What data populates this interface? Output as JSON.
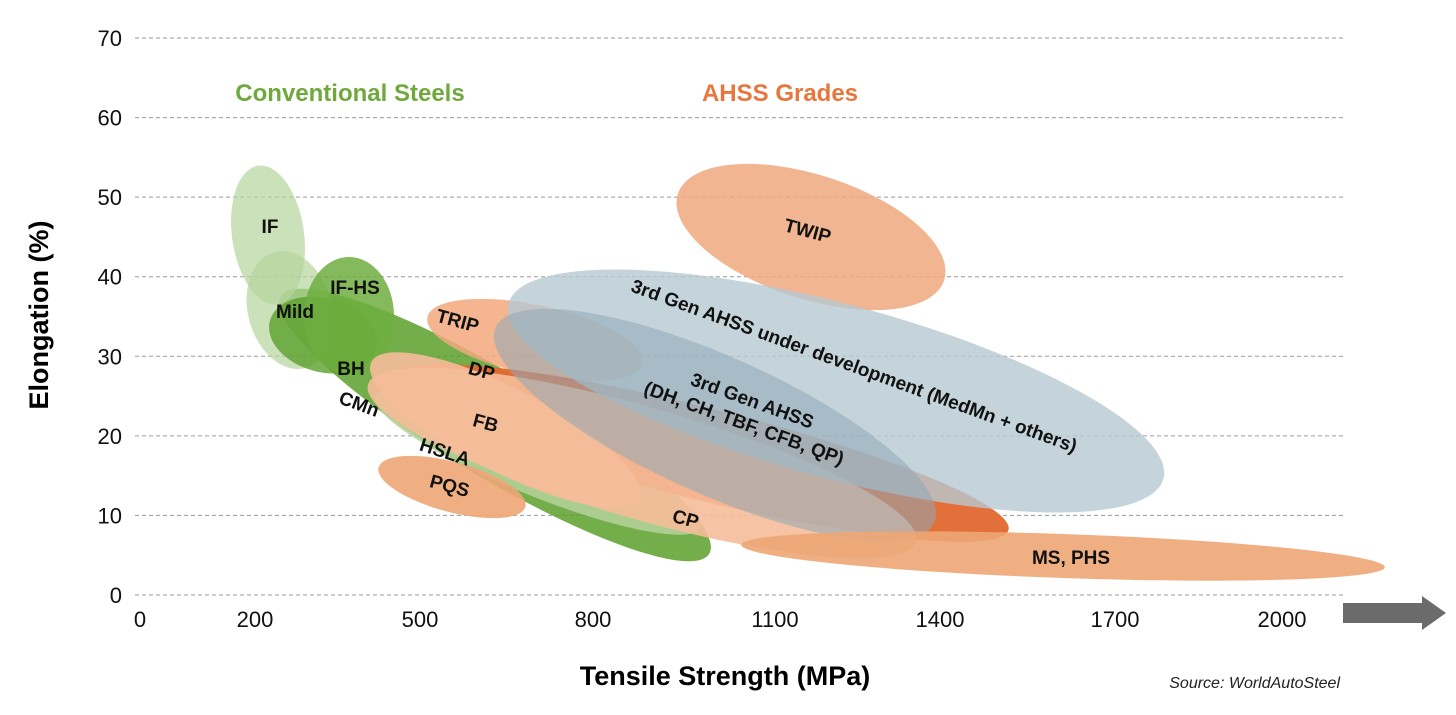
{
  "chart_data": {
    "type": "scatter",
    "xlabel": "Tensile Strength (MPa)",
    "ylabel": "Elongation (%)",
    "x_ticks": [
      "0",
      "200",
      "500",
      "800",
      "1100",
      "1400",
      "1700",
      "2000"
    ],
    "y_ticks": [
      "0",
      "10",
      "20",
      "30",
      "40",
      "50",
      "60",
      "70"
    ],
    "ylim": [
      0,
      70
    ],
    "grid": "horizontal dashed",
    "axis_arrow": "gray right arrow past x-axis",
    "groups": [
      {
        "label": "Conventional Steels",
        "color": "#6fa93e"
      },
      {
        "label": "AHSS Grades",
        "color": "#e8763d"
      }
    ],
    "regions": [
      {
        "label": "CMn",
        "group": "Conventional Steels",
        "color": "#5aa02c",
        "ts_range": [
          280,
          800
        ],
        "el_range": [
          11,
          34
        ]
      },
      {
        "label": "IF",
        "group": "Conventional Steels",
        "color": "#b5d49c",
        "ts_range": [
          180,
          300
        ],
        "el_range": [
          33,
          54
        ]
      },
      {
        "label": "Mild",
        "group": "Conventional Steels",
        "color": "#b5d49c",
        "ts_range": [
          200,
          330
        ],
        "el_range": [
          28,
          43
        ]
      },
      {
        "label": "BH",
        "group": "Conventional Steels",
        "color": "#5aa02c",
        "ts_range": [
          240,
          380
        ],
        "el_range": [
          28,
          38
        ]
      },
      {
        "label": "IF-HS",
        "group": "Conventional Steels",
        "color": "#6fae3f",
        "ts_range": [
          270,
          410
        ],
        "el_range": [
          27,
          42
        ]
      },
      {
        "label": "HSLA",
        "group": "Conventional Steels",
        "color": "#b5d49c",
        "ts_range": [
          400,
          850
        ],
        "el_range": [
          10,
          28
        ]
      },
      {
        "label": "TRIP",
        "group": "AHSS Grades",
        "color": "#f2a87c",
        "ts_range": [
          480,
          920
        ],
        "el_range": [
          27,
          38
        ]
      },
      {
        "label": "DP",
        "group": "AHSS Grades",
        "color": "#e2682f",
        "ts_range": [
          500,
          1520
        ],
        "el_range": [
          6,
          31
        ]
      },
      {
        "label": "FB",
        "group": "AHSS Grades",
        "color": "#f5bc9a",
        "ts_range": [
          420,
          800
        ],
        "el_range": [
          13,
          29
        ]
      },
      {
        "label": "CP",
        "group": "AHSS Grades",
        "color": "#f5bc9a",
        "ts_range": [
          500,
          1400
        ],
        "el_range": [
          6,
          25
        ]
      },
      {
        "label": "PQS",
        "group": "AHSS Grades",
        "color": "#eda676",
        "ts_range": [
          430,
          750
        ],
        "el_range": [
          11,
          18
        ]
      },
      {
        "label": "TWIP",
        "group": "AHSS Grades",
        "color": "#efa87e",
        "ts_range": [
          950,
          1420
        ],
        "el_range": [
          36,
          55
        ]
      },
      {
        "label": "3rd Gen AHSS under development (MedMn + others)",
        "group": "AHSS Grades",
        "color": "#b7c9d2",
        "ts_range": [
          650,
          1810
        ],
        "el_range": [
          9,
          41
        ]
      },
      {
        "label": "3rd Gen AHSS (DH, CH, TBF, CFB, QP)",
        "group": "AHSS Grades",
        "color": "#8fa8b6",
        "ts_range": [
          680,
          1400
        ],
        "el_range": [
          5,
          36
        ]
      },
      {
        "label": "MS, PHS",
        "group": "AHSS Grades",
        "color": "#eda676",
        "ts_range": [
          1100,
          2200
        ],
        "el_range": [
          2,
          8
        ]
      }
    ]
  },
  "source": "Source: WorldAutoSteel"
}
